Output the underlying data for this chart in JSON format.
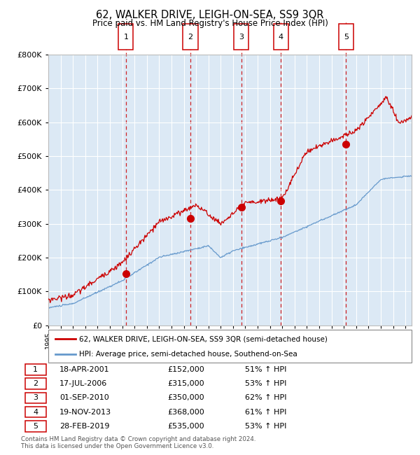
{
  "title": "62, WALKER DRIVE, LEIGH-ON-SEA, SS9 3QR",
  "subtitle": "Price paid vs. HM Land Registry's House Price Index (HPI)",
  "background_color": "#dce9f5",
  "plot_bg_color": "#dce9f5",
  "red_line_color": "#cc0000",
  "blue_line_color": "#6699cc",
  "dashed_line_color": "#cc0000",
  "marker_color": "#cc0000",
  "ylim": [
    0,
    800000
  ],
  "yticks": [
    0,
    100000,
    200000,
    300000,
    400000,
    500000,
    600000,
    700000,
    800000
  ],
  "ytick_labels": [
    "£0",
    "£100K",
    "£200K",
    "£300K",
    "£400K",
    "£500K",
    "£600K",
    "£700K",
    "£800K"
  ],
  "purchase_dates": [
    2001.3,
    2006.54,
    2010.67,
    2013.89,
    2019.17
  ],
  "purchase_prices": [
    152000,
    315000,
    350000,
    368000,
    535000
  ],
  "purchase_labels": [
    "1",
    "2",
    "3",
    "4",
    "5"
  ],
  "legend_red": "62, WALKER DRIVE, LEIGH-ON-SEA, SS9 3QR (semi-detached house)",
  "legend_blue": "HPI: Average price, semi-detached house, Southend-on-Sea",
  "table_rows": [
    [
      "1",
      "18-APR-2001",
      "£152,000",
      "51% ↑ HPI"
    ],
    [
      "2",
      "17-JUL-2006",
      "£315,000",
      "53% ↑ HPI"
    ],
    [
      "3",
      "01-SEP-2010",
      "£350,000",
      "62% ↑ HPI"
    ],
    [
      "4",
      "19-NOV-2013",
      "£368,000",
      "61% ↑ HPI"
    ],
    [
      "5",
      "28-FEB-2019",
      "£535,000",
      "53% ↑ HPI"
    ]
  ],
  "footer": "Contains HM Land Registry data © Crown copyright and database right 2024.\nThis data is licensed under the Open Government Licence v3.0.",
  "xmin": 1995,
  "xmax": 2024.5
}
